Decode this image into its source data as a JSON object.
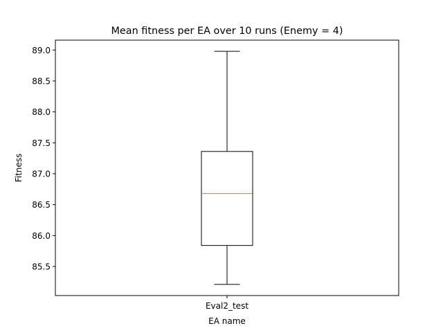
{
  "chart_data": {
    "type": "box",
    "title": "Mean fitness per EA over 10 runs (Enemy = 4)",
    "xlabel": "EA name",
    "ylabel": "Fitness",
    "categories": [
      "Eval2_test"
    ],
    "boxes": [
      {
        "name": "Eval2_test",
        "whisker_low": 85.21,
        "q1": 85.84,
        "median": 86.68,
        "q3": 87.36,
        "whisker_high": 88.98
      }
    ],
    "yticks": [
      "85.5",
      "86.0",
      "86.5",
      "87.0",
      "87.5",
      "88.0",
      "88.5",
      "89.0"
    ],
    "ylim": [
      85.03,
      89.16
    ],
    "grid": false,
    "legend": "none",
    "colors": {
      "box": "#000000",
      "median": "#ff7f0e",
      "axes": "#000000"
    }
  }
}
